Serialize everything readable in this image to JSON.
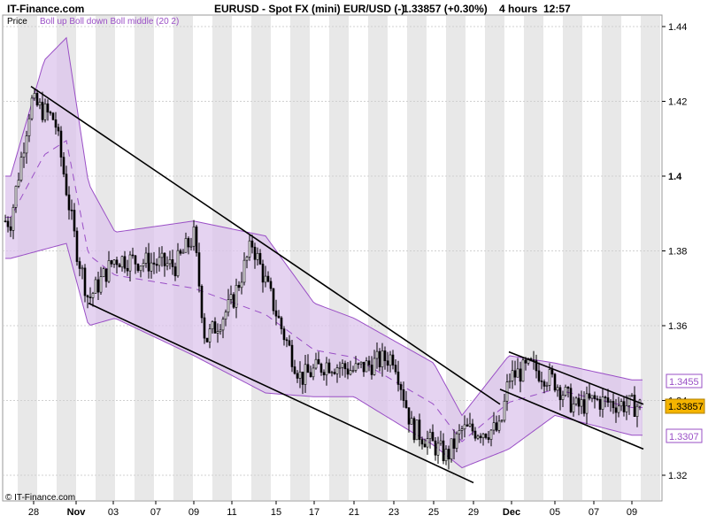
{
  "header": {
    "site": "IT-Finance.com",
    "instrument": "EURUSD - Spot FX (mini) EUR/USD (-)",
    "price": "1.33857 (+0.30%)",
    "interval": "4 hours",
    "time": "12:57"
  },
  "legend": {
    "price_label": "Price",
    "bollinger_label": "Boll up Boll down Boll middle (20 2)"
  },
  "footer": {
    "copyright": "© IT-Finance.com"
  },
  "markers": {
    "upper_band": "1.3455",
    "last_price": "1.33857",
    "lower_band": "1.3307"
  },
  "colors": {
    "band_fill": "#dcc4ec",
    "band_line": "#9a4fc6",
    "last_price_box": "#f5b400",
    "stripe": "#e8e8e8"
  },
  "chart_data": {
    "type": "candlestick",
    "indicator": "Bollinger Bands (20, 2)",
    "ylim": [
      1.315,
      1.445
    ],
    "y_ticks": [
      "1.44",
      "1.42",
      "1.4",
      "1.38",
      "1.36",
      "1.34",
      "1.32"
    ],
    "x_ticks": [
      "28",
      "Nov",
      "03",
      "07",
      "09",
      "11",
      "15",
      "17",
      "21",
      "23",
      "25",
      "29",
      "Dec",
      "05",
      "07",
      "09"
    ],
    "grid": true,
    "close_series_approx": [
      {
        "x": "27 Oct",
        "close": 1.388
      },
      {
        "x": "28 Oct",
        "close": 1.42
      },
      {
        "x": "30 Oct",
        "close": 1.415
      },
      {
        "x": "01 Nov",
        "close": 1.381
      },
      {
        "x": "02 Nov",
        "close": 1.367
      },
      {
        "x": "05 Nov",
        "close": 1.378
      },
      {
        "x": "08 Nov",
        "close": 1.376
      },
      {
        "x": "09 Nov",
        "close": 1.384
      },
      {
        "x": "10 Nov",
        "close": 1.356
      },
      {
        "x": "11 Nov",
        "close": 1.366
      },
      {
        "x": "12 Nov",
        "close": 1.382
      },
      {
        "x": "14 Nov",
        "close": 1.358
      },
      {
        "x": "16 Nov",
        "close": 1.346
      },
      {
        "x": "19 Nov",
        "close": 1.35
      },
      {
        "x": "21 Nov",
        "close": 1.348
      },
      {
        "x": "23 Nov",
        "close": 1.352
      },
      {
        "x": "24 Nov",
        "close": 1.333
      },
      {
        "x": "26 Nov",
        "close": 1.325
      },
      {
        "x": "28 Nov",
        "close": 1.332
      },
      {
        "x": "30 Nov",
        "close": 1.332
      },
      {
        "x": "01 Dec",
        "close": 1.346
      },
      {
        "x": "03 Dec",
        "close": 1.349
      },
      {
        "x": "05 Dec",
        "close": 1.345
      },
      {
        "x": "06 Dec",
        "close": 1.338
      },
      {
        "x": "07 Dec",
        "close": 1.34
      },
      {
        "x": "09 Dec",
        "close": 1.3386
      }
    ],
    "bollinger_upper_approx": [
      {
        "x": "27 Oct",
        "v": 1.4
      },
      {
        "x": "29 Oct",
        "v": 1.431
      },
      {
        "x": "31 Oct",
        "v": 1.437
      },
      {
        "x": "02 Nov",
        "v": 1.398
      },
      {
        "x": "05 Nov",
        "v": 1.385
      },
      {
        "x": "09 Nov",
        "v": 1.388
      },
      {
        "x": "13 Nov",
        "v": 1.384
      },
      {
        "x": "17 Nov",
        "v": 1.366
      },
      {
        "x": "21 Nov",
        "v": 1.362
      },
      {
        "x": "25 Nov",
        "v": 1.35
      },
      {
        "x": "28 Nov",
        "v": 1.336
      },
      {
        "x": "01 Dec",
        "v": 1.352
      },
      {
        "x": "05 Dec",
        "v": 1.35
      },
      {
        "x": "09 Dec",
        "v": 1.3455
      }
    ],
    "bollinger_lower_approx": [
      {
        "x": "27 Oct",
        "v": 1.378
      },
      {
        "x": "31 Oct",
        "v": 1.382
      },
      {
        "x": "02 Nov",
        "v": 1.36
      },
      {
        "x": "05 Nov",
        "v": 1.362
      },
      {
        "x": "09 Nov",
        "v": 1.352
      },
      {
        "x": "13 Nov",
        "v": 1.342
      },
      {
        "x": "17 Nov",
        "v": 1.341
      },
      {
        "x": "21 Nov",
        "v": 1.341
      },
      {
        "x": "25 Nov",
        "v": 1.328
      },
      {
        "x": "28 Nov",
        "v": 1.322
      },
      {
        "x": "01 Dec",
        "v": 1.327
      },
      {
        "x": "05 Dec",
        "v": 1.336
      },
      {
        "x": "09 Dec",
        "v": 1.3307
      }
    ],
    "trend_lines": [
      {
        "name": "upper channel",
        "from": {
          "x": "28 Oct",
          "y": 1.424
        },
        "to": {
          "x": "30 Nov",
          "y": 1.339
        }
      },
      {
        "name": "lower channel",
        "from": {
          "x": "02 Nov",
          "y": 1.366
        },
        "to": {
          "x": "29 Nov",
          "y": 1.318
        }
      },
      {
        "name": "dec upper channel",
        "from": {
          "x": "01 Dec",
          "y": 1.353
        },
        "to": {
          "x": "10 Dec",
          "y": 1.339
        }
      },
      {
        "name": "dec lower channel",
        "from": {
          "x": "30 Nov",
          "y": 1.343
        },
        "to": {
          "x": "10 Dec",
          "y": 1.327
        }
      }
    ]
  }
}
